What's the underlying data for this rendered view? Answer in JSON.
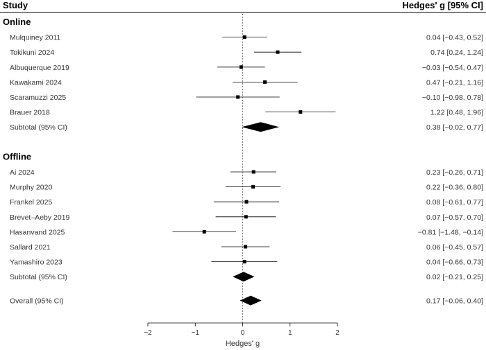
{
  "chart_data": {
    "type": "forest",
    "header": {
      "study": "Study",
      "effect": "Hedges' g [95% CI]"
    },
    "xlabel": "Hedges' g",
    "xlim": [
      -2,
      2
    ],
    "xticks": [
      "−2",
      "−1",
      "0",
      "1",
      "2"
    ],
    "groups": [
      {
        "name": "Online",
        "studies": [
          {
            "label": "Mulquiney 2011",
            "g": 0.04,
            "lo": -0.43,
            "hi": 0.52,
            "text": "0.04 [−0.43, 0.52]"
          },
          {
            "label": "Tokikuni 2024",
            "g": 0.74,
            "lo": 0.24,
            "hi": 1.24,
            "text": "0.74 [0.24, 1.24]"
          },
          {
            "label": "Albuquerque 2019",
            "g": -0.03,
            "lo": -0.54,
            "hi": 0.47,
            "text": "−0.03 [−0.54, 0.47]"
          },
          {
            "label": "Kawakami 2024",
            "g": 0.47,
            "lo": -0.21,
            "hi": 1.16,
            "text": "0.47 [−0.21, 1.16]"
          },
          {
            "label": "Scaramuzzi 2025",
            "g": -0.1,
            "lo": -0.98,
            "hi": 0.78,
            "text": "−0.10 [−0.98, 0.78]"
          },
          {
            "label": "Brauer 2018",
            "g": 1.22,
            "lo": 0.48,
            "hi": 1.96,
            "text": "1.22 [0.48, 1.96]"
          }
        ],
        "subtotal": {
          "label": "Subtotal (95% CI)",
          "g": 0.38,
          "lo": -0.02,
          "hi": 0.77,
          "text": "0.38 [−0.02, 0.77]"
        }
      },
      {
        "name": "Offline",
        "studies": [
          {
            "label": "Ai 2024",
            "g": 0.23,
            "lo": -0.26,
            "hi": 0.71,
            "text": "0.23 [−0.26, 0.71]"
          },
          {
            "label": "Murphy 2020",
            "g": 0.22,
            "lo": -0.36,
            "hi": 0.8,
            "text": "0.22 [−0.36, 0.80]"
          },
          {
            "label": "Frankel 2025",
            "g": 0.08,
            "lo": -0.61,
            "hi": 0.77,
            "text": "0.08 [−0.61, 0.77]"
          },
          {
            "label": "Brevet–Aeby 2019",
            "g": 0.07,
            "lo": -0.57,
            "hi": 0.7,
            "text": "0.07 [−0.57, 0.70]"
          },
          {
            "label": "Hasanvand 2025",
            "g": -0.81,
            "lo": -1.48,
            "hi": -0.14,
            "text": "−0.81 [−1.48, −0.14]"
          },
          {
            "label": "Sallard 2021",
            "g": 0.06,
            "lo": -0.45,
            "hi": 0.57,
            "text": "0.06 [−0.45, 0.57]"
          },
          {
            "label": "Yamashiro 2023",
            "g": 0.04,
            "lo": -0.66,
            "hi": 0.73,
            "text": "0.04 [−0.66, 0.73]"
          }
        ],
        "subtotal": {
          "label": "Subtotal (95% CI)",
          "g": 0.02,
          "lo": -0.21,
          "hi": 0.25,
          "text": "0.02 [−0.21, 0.25]"
        }
      }
    ],
    "overall": {
      "label": "Overall (95% CI)",
      "g": 0.17,
      "lo": -0.06,
      "hi": 0.4,
      "text": "0.17 [−0.06, 0.40]"
    }
  }
}
